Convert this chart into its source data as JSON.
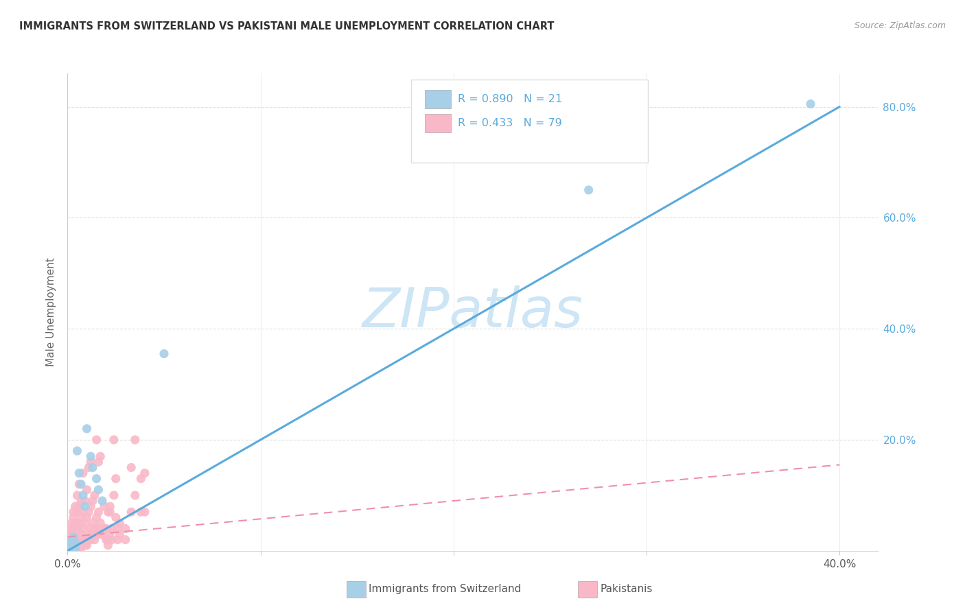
{
  "title": "IMMIGRANTS FROM SWITZERLAND VS PAKISTANI MALE UNEMPLOYMENT CORRELATION CHART",
  "source": "Source: ZipAtlas.com",
  "ylabel": "Male Unemployment",
  "watermark": "ZIPatlas",
  "blue_scatter_color": "#a8cfe8",
  "pink_scatter_color": "#f9b8c8",
  "blue_line_color": "#5aaadc",
  "pink_line_color": "#f090a8",
  "right_axis_color": "#5aaadc",
  "title_color": "#333333",
  "source_color": "#999999",
  "ylabel_color": "#666666",
  "watermark_color": "#cde5f5",
  "grid_color": "#e0e0e0",
  "tick_color": "#aaaaaa",
  "swiss_points": [
    [
      0.001,
      0.005
    ],
    [
      0.001,
      0.01
    ],
    [
      0.002,
      0.015
    ],
    [
      0.002,
      0.02
    ],
    [
      0.003,
      0.01
    ],
    [
      0.003,
      0.025
    ],
    [
      0.004,
      0.005
    ],
    [
      0.004,
      0.015
    ],
    [
      0.005,
      0.18
    ],
    [
      0.006,
      0.14
    ],
    [
      0.007,
      0.12
    ],
    [
      0.008,
      0.1
    ],
    [
      0.009,
      0.08
    ],
    [
      0.01,
      0.22
    ],
    [
      0.012,
      0.17
    ],
    [
      0.013,
      0.15
    ],
    [
      0.015,
      0.13
    ],
    [
      0.016,
      0.11
    ],
    [
      0.018,
      0.09
    ],
    [
      0.05,
      0.355
    ],
    [
      0.27,
      0.65
    ],
    [
      0.385,
      0.805
    ]
  ],
  "pakistani_points": [
    [
      0.001,
      0.005
    ],
    [
      0.001,
      0.01
    ],
    [
      0.001,
      0.015
    ],
    [
      0.001,
      0.02
    ],
    [
      0.001,
      0.025
    ],
    [
      0.001,
      0.03
    ],
    [
      0.002,
      0.005
    ],
    [
      0.002,
      0.01
    ],
    [
      0.002,
      0.02
    ],
    [
      0.002,
      0.03
    ],
    [
      0.002,
      0.04
    ],
    [
      0.002,
      0.05
    ],
    [
      0.003,
      0.005
    ],
    [
      0.003,
      0.01
    ],
    [
      0.003,
      0.02
    ],
    [
      0.003,
      0.04
    ],
    [
      0.003,
      0.06
    ],
    [
      0.003,
      0.07
    ],
    [
      0.004,
      0.01
    ],
    [
      0.004,
      0.02
    ],
    [
      0.004,
      0.03
    ],
    [
      0.004,
      0.05
    ],
    [
      0.004,
      0.08
    ],
    [
      0.005,
      0.005
    ],
    [
      0.005,
      0.01
    ],
    [
      0.005,
      0.02
    ],
    [
      0.005,
      0.04
    ],
    [
      0.005,
      0.07
    ],
    [
      0.005,
      0.1
    ],
    [
      0.006,
      0.01
    ],
    [
      0.006,
      0.02
    ],
    [
      0.006,
      0.05
    ],
    [
      0.006,
      0.08
    ],
    [
      0.006,
      0.12
    ],
    [
      0.007,
      0.005
    ],
    [
      0.007,
      0.01
    ],
    [
      0.007,
      0.03
    ],
    [
      0.007,
      0.06
    ],
    [
      0.007,
      0.09
    ],
    [
      0.008,
      0.01
    ],
    [
      0.008,
      0.02
    ],
    [
      0.008,
      0.04
    ],
    [
      0.008,
      0.07
    ],
    [
      0.008,
      0.14
    ],
    [
      0.009,
      0.01
    ],
    [
      0.009,
      0.02
    ],
    [
      0.009,
      0.05
    ],
    [
      0.009,
      0.09
    ],
    [
      0.01,
      0.01
    ],
    [
      0.01,
      0.02
    ],
    [
      0.01,
      0.06
    ],
    [
      0.01,
      0.11
    ],
    [
      0.011,
      0.02
    ],
    [
      0.011,
      0.03
    ],
    [
      0.011,
      0.07
    ],
    [
      0.011,
      0.15
    ],
    [
      0.012,
      0.02
    ],
    [
      0.012,
      0.04
    ],
    [
      0.012,
      0.08
    ],
    [
      0.012,
      0.16
    ],
    [
      0.013,
      0.03
    ],
    [
      0.013,
      0.05
    ],
    [
      0.013,
      0.09
    ],
    [
      0.014,
      0.02
    ],
    [
      0.014,
      0.04
    ],
    [
      0.014,
      0.1
    ],
    [
      0.015,
      0.03
    ],
    [
      0.015,
      0.06
    ],
    [
      0.015,
      0.2
    ],
    [
      0.016,
      0.04
    ],
    [
      0.016,
      0.07
    ],
    [
      0.016,
      0.16
    ],
    [
      0.017,
      0.03
    ],
    [
      0.017,
      0.05
    ],
    [
      0.017,
      0.17
    ],
    [
      0.018,
      0.03
    ],
    [
      0.019,
      0.04
    ],
    [
      0.019,
      0.08
    ],
    [
      0.02,
      0.02
    ],
    [
      0.02,
      0.04
    ],
    [
      0.021,
      0.01
    ],
    [
      0.021,
      0.02
    ],
    [
      0.021,
      0.07
    ],
    [
      0.022,
      0.03
    ],
    [
      0.022,
      0.07
    ],
    [
      0.022,
      0.08
    ],
    [
      0.023,
      0.02
    ],
    [
      0.023,
      0.04
    ],
    [
      0.024,
      0.1
    ],
    [
      0.024,
      0.2
    ],
    [
      0.025,
      0.06
    ],
    [
      0.025,
      0.13
    ],
    [
      0.026,
      0.02
    ],
    [
      0.026,
      0.04
    ],
    [
      0.027,
      0.03
    ],
    [
      0.027,
      0.05
    ],
    [
      0.03,
      0.02
    ],
    [
      0.03,
      0.04
    ],
    [
      0.033,
      0.07
    ],
    [
      0.033,
      0.15
    ],
    [
      0.035,
      0.1
    ],
    [
      0.035,
      0.2
    ],
    [
      0.038,
      0.07
    ],
    [
      0.038,
      0.13
    ],
    [
      0.04,
      0.07
    ],
    [
      0.04,
      0.14
    ]
  ],
  "swiss_line_x": [
    0.0,
    0.4
  ],
  "swiss_line_y": [
    0.0,
    0.8
  ],
  "pak_line_x": [
    0.0,
    0.4
  ],
  "pak_line_y": [
    0.025,
    0.155
  ],
  "xlim": [
    0.0,
    0.42
  ],
  "ylim": [
    0.0,
    0.86
  ],
  "x_ticks": [
    0.0,
    0.1,
    0.2,
    0.3,
    0.4
  ],
  "y_ticks": [
    0.0,
    0.2,
    0.4,
    0.6,
    0.8
  ],
  "x_tick_labels": [
    "0.0%",
    "",
    "",
    "",
    "40.0%"
  ],
  "y_tick_right_labels": [
    "80.0%",
    "60.0%",
    "40.0%",
    "20.0%",
    ""
  ]
}
